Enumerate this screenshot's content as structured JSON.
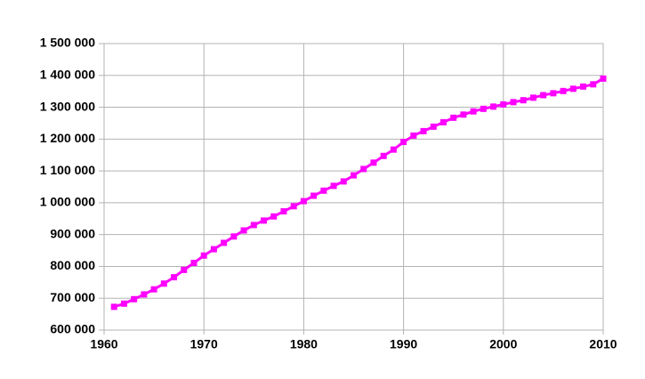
{
  "chart_data": {
    "type": "line",
    "x": [
      1961,
      1962,
      1963,
      1964,
      1965,
      1966,
      1967,
      1968,
      1969,
      1970,
      1971,
      1972,
      1973,
      1974,
      1975,
      1976,
      1977,
      1978,
      1979,
      1980,
      1981,
      1982,
      1983,
      1984,
      1985,
      1986,
      1987,
      1988,
      1989,
      1990,
      1991,
      1992,
      1993,
      1994,
      1995,
      1996,
      1997,
      1998,
      1999,
      2000,
      2001,
      2002,
      2003,
      2004,
      2005,
      2006,
      2007,
      2008,
      2009,
      2010
    ],
    "series": [
      {
        "color": "#ff00ff",
        "values": [
          673000,
          683000,
          697000,
          712000,
          728000,
          746000,
          766000,
          789000,
          811000,
          834000,
          854000,
          874000,
          894000,
          913000,
          930000,
          944000,
          957000,
          973000,
          989000,
          1005000,
          1022000,
          1038000,
          1053000,
          1067000,
          1086000,
          1106000,
          1126000,
          1147000,
          1167000,
          1191000,
          1211000,
          1225000,
          1239000,
          1253000,
          1267000,
          1277000,
          1287000,
          1295000,
          1302000,
          1309000,
          1316000,
          1322000,
          1330000,
          1338000,
          1344000,
          1351000,
          1358000,
          1365000,
          1372000,
          1390000
        ]
      }
    ],
    "xlim": [
      1960,
      2010
    ],
    "xticks": [
      1960,
      1970,
      1980,
      1990,
      2000,
      2010
    ],
    "ylim": [
      600000,
      1500000
    ],
    "yticks": [
      {
        "value": 600000,
        "label": "600 000"
      },
      {
        "value": 700000,
        "label": "700 000"
      },
      {
        "value": 800000,
        "label": "800 000"
      },
      {
        "value": 900000,
        "label": "900 000"
      },
      {
        "value": 1000000,
        "label": "1 000 000"
      },
      {
        "value": 1100000,
        "label": "1 100 000"
      },
      {
        "value": 1200000,
        "label": "1 200 000"
      },
      {
        "value": 1300000,
        "label": "1 300 000"
      },
      {
        "value": 1400000,
        "label": "1 400 000"
      },
      {
        "value": 1500000,
        "label": "1 500 000"
      }
    ],
    "grid": true
  }
}
